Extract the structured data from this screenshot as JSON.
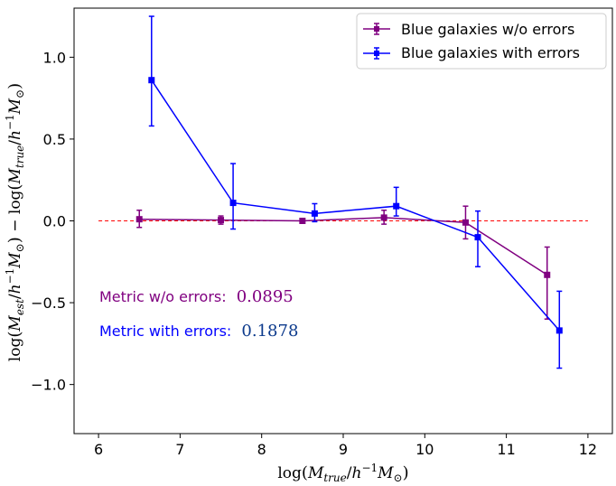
{
  "chart_data": {
    "type": "line",
    "title": "",
    "xlabel": "log(M_true/h^-1 M_sun)",
    "ylabel": "log(M_est/h^-1 M_sun) - log(M_true/h^-1 M_sun)",
    "xlim": [
      5.7,
      12.3
    ],
    "ylim": [
      -1.3,
      1.3
    ],
    "x_ticks": [
      6,
      7,
      8,
      9,
      10,
      11,
      12
    ],
    "x_tick_labels": [
      "6",
      "7",
      "8",
      "9",
      "10",
      "11",
      "12"
    ],
    "y_ticks": [
      1.0,
      0.5,
      0.0,
      -0.5,
      -1.0
    ],
    "y_tick_labels": [
      "1.0",
      "0.5",
      "0.0",
      "−0.5",
      "−1.0"
    ],
    "grid": false,
    "legend_position": "top-right",
    "series": [
      {
        "name": "Blue galaxies w/o errors",
        "color": "#800080",
        "marker": "square",
        "x": [
          6.5,
          7.5,
          8.5,
          9.5,
          10.5,
          11.5
        ],
        "y": [
          0.01,
          0.005,
          0.0,
          0.02,
          -0.01,
          -0.33
        ],
        "yerr_lower": [
          0.05,
          0.025,
          0.005,
          0.04,
          0.1,
          0.27
        ],
        "yerr_upper": [
          0.055,
          0.025,
          0.005,
          0.045,
          0.1,
          0.17
        ]
      },
      {
        "name": "Blue galaxies with errors",
        "color": "#0000ff",
        "marker": "square",
        "x": [
          6.65,
          7.65,
          8.65,
          9.65,
          10.65,
          11.65
        ],
        "y": [
          0.86,
          0.11,
          0.045,
          0.09,
          -0.1,
          -0.67
        ],
        "yerr_lower": [
          0.28,
          0.16,
          0.05,
          0.06,
          0.18,
          0.23
        ],
        "yerr_upper": [
          0.39,
          0.24,
          0.06,
          0.115,
          0.16,
          0.24
        ]
      }
    ],
    "reference_line": {
      "y": 0.0,
      "x_range": [
        6.0,
        12.0
      ],
      "color": "#ff0000",
      "style": "dashed"
    },
    "annotations": [
      {
        "label": "Metric w/o errors:",
        "value": "0.0895",
        "color": "#800080",
        "value_color": "#800080"
      },
      {
        "label": "Metric with errors:",
        "value": "0.1878",
        "color": "#0000ff",
        "value_color": "#0c3a8c"
      }
    ]
  }
}
